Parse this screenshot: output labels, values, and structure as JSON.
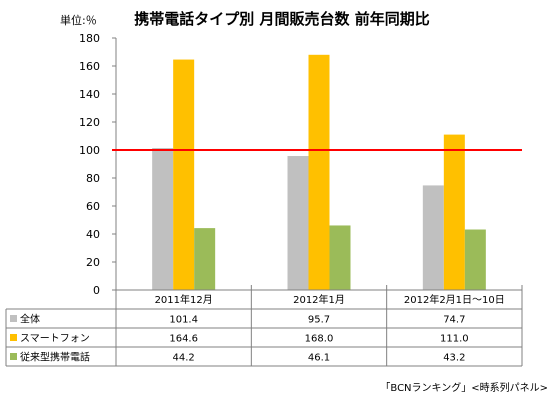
{
  "chart_data": {
    "type": "bar",
    "title": "携帯電話タイプ別 月間販売台数 前年同期比",
    "unit_label": "単位:％",
    "categories": [
      "2011年12月",
      "2012年1月",
      "2012年2月1日～10日"
    ],
    "series": [
      {
        "name": "全体",
        "values": [
          101.4,
          95.7,
          74.7
        ],
        "display": [
          "101.4",
          "95.7",
          "74.7"
        ],
        "color": "#c0c0c0"
      },
      {
        "name": "スマートフォン",
        "values": [
          164.6,
          168.0,
          111.0
        ],
        "display": [
          "164.6",
          "168.0",
          "111.0"
        ],
        "color": "#ffc000"
      },
      {
        "name": "従来型携帯電話",
        "values": [
          44.2,
          46.1,
          43.2
        ],
        "display": [
          "44.2",
          "46.1",
          "43.2"
        ],
        "color": "#9bbb59"
      }
    ],
    "ylim": [
      0,
      180
    ],
    "yticks": [
      "0",
      "20",
      "40",
      "60",
      "80",
      "100",
      "120",
      "140",
      "160",
      "180"
    ],
    "reference_line": {
      "value": 100,
      "color": "#ff0000"
    },
    "grid": false,
    "legend": "data-table-left",
    "source": "「BCNランキング」<時系列パネル>"
  }
}
